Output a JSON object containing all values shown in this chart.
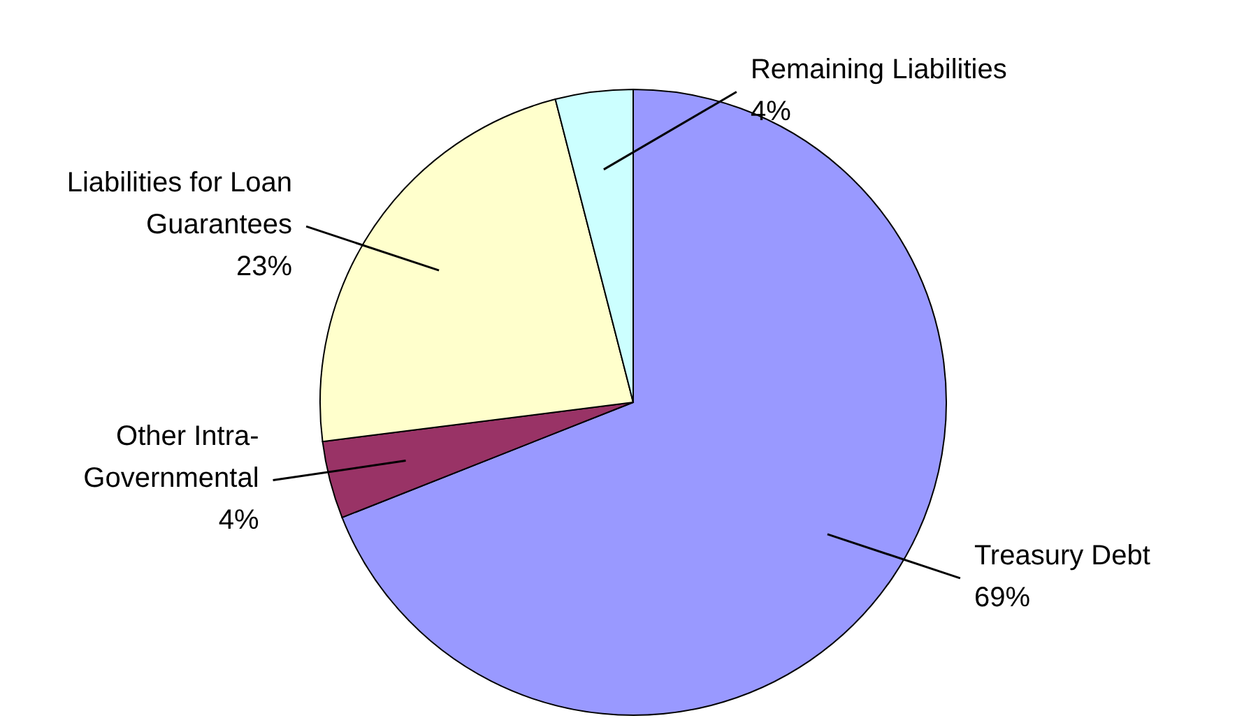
{
  "chart_data": {
    "type": "pie",
    "categories": [
      "Treasury Debt",
      "Other Intra-Governmental",
      "Liabilities for Loan Guarantees",
      "Remaining Liabilities"
    ],
    "values": [
      69,
      4,
      23,
      4
    ],
    "colors": [
      "#9999ff",
      "#993366",
      "#ffffcc",
      "#ccffff"
    ],
    "value_labels": [
      "69%",
      "4%",
      "23%",
      "4%"
    ]
  }
}
